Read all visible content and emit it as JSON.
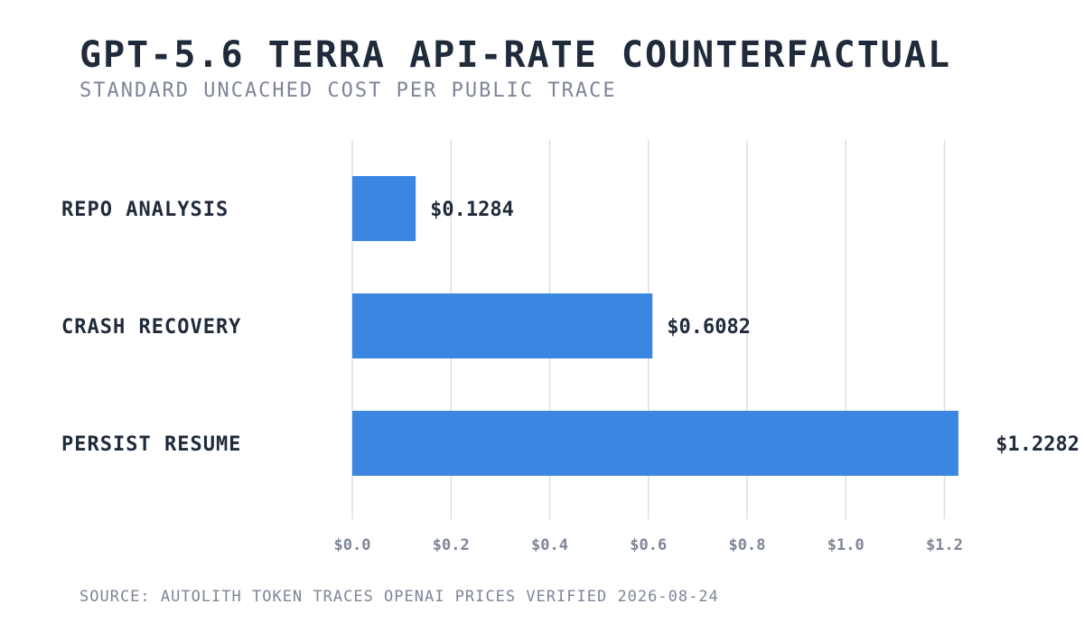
{
  "title": "GPT-5.6 TERRA API-RATE COUNTERFACTUAL",
  "subtitle": "STANDARD UNCACHED COST PER PUBLIC TRACE",
  "source": "SOURCE: AUTOLITH TOKEN TRACES  OPENAI PRICES VERIFIED 2026-08-24",
  "colors": {
    "bar": "#3a86e0",
    "text": "#1f2a3a",
    "muted": "#7d8597",
    "grid": "#dcdfe8"
  },
  "chart_data": {
    "type": "bar",
    "orientation": "horizontal",
    "categories": [
      "REPO ANALYSIS",
      "CRASH RECOVERY",
      "PERSIST RESUME"
    ],
    "values": [
      0.1284,
      0.6082,
      1.2282
    ],
    "value_labels": [
      "$0.1284",
      "$0.6082",
      "$1.2282"
    ],
    "xlim": [
      0,
      1.3
    ],
    "xticks": [
      0.0,
      0.2,
      0.4,
      0.6,
      0.8,
      1.0,
      1.2
    ],
    "xtick_labels": [
      "$0.0",
      "$0.2",
      "$0.4",
      "$0.6",
      "$0.8",
      "$1.0",
      "$1.2"
    ],
    "xlabel": "",
    "ylabel": "",
    "grid": "vertical"
  }
}
